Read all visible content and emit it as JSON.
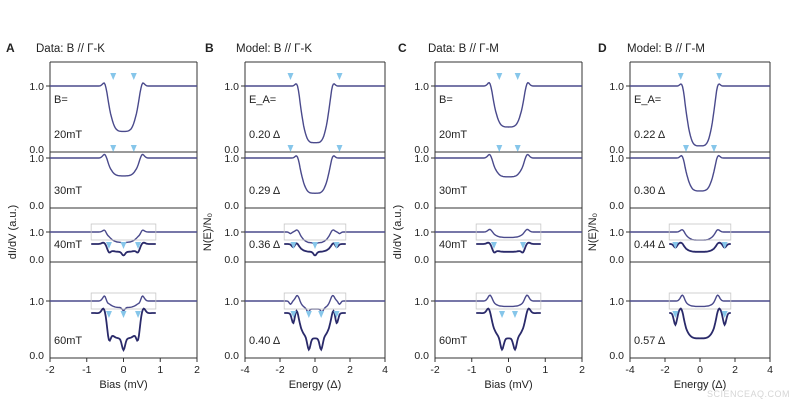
{
  "watermark": "SCIENCEAQ.COM",
  "chart_data": [
    {
      "type": "line",
      "panel": "A",
      "title": "Data: B // Γ-K",
      "xlabel": "Bias (mV)",
      "ylabel": "dI/dV (a.u.)",
      "xlim": [
        -2,
        2
      ],
      "xticks": [
        "-2",
        "-1",
        "0",
        "1",
        "2"
      ],
      "yticks": [
        "1.0",
        "0.0"
      ],
      "label_header": "B=",
      "rows": [
        {
          "label": "20mT",
          "min": 0.28,
          "dips": [
            -0.28,
            0.28
          ],
          "inset": false
        },
        {
          "label": "30mT",
          "min": 0.62,
          "dips": [
            -0.28,
            0.28
          ],
          "inset": false
        },
        {
          "label": "40mT",
          "min": 0.62,
          "dips": [
            -0.45,
            0,
            0.45
          ],
          "inset": true
        },
        {
          "label": "60mT",
          "min": 0.88,
          "dips": [
            -0.45,
            0,
            0.45
          ],
          "inset": true
        }
      ]
    },
    {
      "type": "line",
      "panel": "B",
      "title": "Model: B // Γ-K",
      "xlabel": "Energy (Δ)",
      "ylabel": "N(E)/N₀",
      "xlim": [
        -5,
        5
      ],
      "xticks": [
        "-4",
        "-2",
        "0",
        "2",
        "4"
      ],
      "yticks": [
        "1.0",
        "0.0"
      ],
      "label_header": "E_A=",
      "rows": [
        {
          "label": "0.20 Δ",
          "min": 0.1,
          "dips": [
            -0.7,
            0.7
          ],
          "inset": false
        },
        {
          "label": "0.29 Δ",
          "min": 0.25,
          "dips": [
            -0.7,
            0.7
          ],
          "inset": false
        },
        {
          "label": "0.36 Δ",
          "min": 0.6,
          "dips": [
            -0.7,
            0,
            0.7
          ],
          "inset": true
        },
        {
          "label": "0.40 Δ",
          "min": 0.85,
          "dips": [
            -0.7,
            -0.2,
            0.2,
            0.7
          ],
          "inset": true
        }
      ]
    },
    {
      "type": "line",
      "panel": "C",
      "title": "Data: B // Γ-M",
      "xlabel": "Bias (mV)",
      "ylabel": "dI/dV (a.u.)",
      "xlim": [
        -2,
        2
      ],
      "xticks": [
        "-2",
        "-1",
        "0",
        "1",
        "2"
      ],
      "yticks": [
        "1.0",
        "0.0"
      ],
      "label_header": "B=",
      "rows": [
        {
          "label": "20mT",
          "min": 0.35,
          "dips": [
            -0.25,
            0.25
          ],
          "inset": false
        },
        {
          "label": "30mT",
          "min": 0.6,
          "dips": [
            -0.25,
            0.25
          ],
          "inset": false
        },
        {
          "label": "40mT",
          "min": 0.8,
          "dips": [
            -0.45,
            0.45
          ],
          "inset": true
        },
        {
          "label": "60mT",
          "min": 0.9,
          "dips": [
            -0.2,
            0.2
          ],
          "inset": true
        }
      ]
    },
    {
      "type": "line",
      "panel": "D",
      "title": "Model: B // Γ-M",
      "xlabel": "Energy (Δ)",
      "ylabel": "N(E)/N₀",
      "xlim": [
        -5,
        5
      ],
      "xticks": [
        "-4",
        "-2",
        "0",
        "2",
        "4"
      ],
      "yticks": [
        "1.0",
        "0.0"
      ],
      "label_header": "E_A=",
      "rows": [
        {
          "label": "0.22 Δ",
          "min": 0.05,
          "dips": [
            -0.55,
            0.55
          ],
          "inset": false
        },
        {
          "label": "0.30 Δ",
          "min": 0.3,
          "dips": [
            -0.4,
            0.4
          ],
          "inset": false
        },
        {
          "label": "0.44 Δ",
          "min": 0.7,
          "dips": [
            -0.8,
            0.8
          ],
          "inset": true
        },
        {
          "label": "0.57 Δ",
          "min": 0.9,
          "dips": [
            -0.8,
            0.8
          ],
          "inset": true
        }
      ]
    }
  ],
  "colors": {
    "curve": "#4a4a8c",
    "inset_curve": "#2a2a6a",
    "arrow": "#86c6ea",
    "axis": "#333333",
    "inset_box": "#c7c7c7"
  }
}
